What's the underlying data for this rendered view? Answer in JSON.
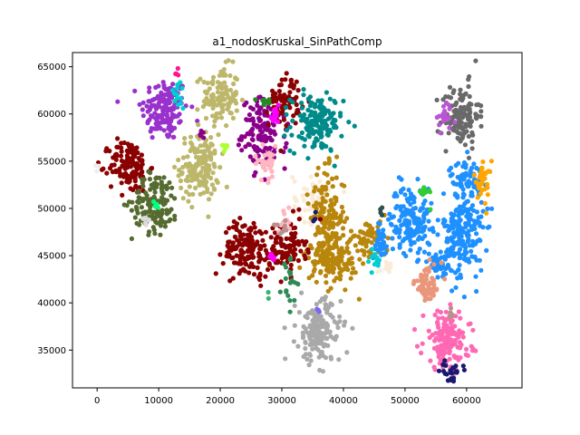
{
  "chart_data": {
    "type": "scatter",
    "title": "a1_nodosKruskal_SinPathComp",
    "xlabel": "",
    "ylabel": "",
    "xlim": [
      -4000,
      69000
    ],
    "ylim": [
      31000,
      66500
    ],
    "xticks": [
      0,
      10000,
      20000,
      30000,
      40000,
      50000,
      60000
    ],
    "yticks": [
      35000,
      40000,
      45000,
      50000,
      55000,
      60000,
      65000
    ],
    "xtick_labels": [
      "0",
      "10000",
      "20000",
      "30000",
      "40000",
      "50000",
      "60000"
    ],
    "ytick_labels": [
      "35000",
      "40000",
      "45000",
      "50000",
      "55000",
      "60000",
      "65000"
    ],
    "grid": false,
    "legend": "none",
    "clusters": [
      {
        "color": "#9932cc",
        "cx": 11000,
        "cy": 60500,
        "sx": 1900,
        "sy": 1700,
        "n": 150
      },
      {
        "color": "#bdb76b",
        "cx": 20000,
        "cy": 61800,
        "sx": 1500,
        "sy": 1600,
        "n": 120
      },
      {
        "color": "#bdb76b",
        "cx": 16600,
        "cy": 54300,
        "sx": 1600,
        "sy": 1800,
        "n": 150
      },
      {
        "color": "#8b008b",
        "cx": 27200,
        "cy": 58000,
        "sx": 1800,
        "sy": 1800,
        "n": 140
      },
      {
        "color": "#8b0000",
        "cx": 30500,
        "cy": 61500,
        "sx": 1300,
        "sy": 1400,
        "n": 70
      },
      {
        "color": "#008b8b",
        "cx": 35700,
        "cy": 59000,
        "sx": 2100,
        "sy": 1500,
        "n": 150
      },
      {
        "color": "#696969",
        "cx": 59000,
        "cy": 59800,
        "sx": 1500,
        "sy": 1700,
        "n": 130
      },
      {
        "color": "#8b0000",
        "cx": 5200,
        "cy": 54500,
        "sx": 1600,
        "sy": 1400,
        "n": 130
      },
      {
        "color": "#556b2f",
        "cx": 9500,
        "cy": 50600,
        "sx": 1900,
        "sy": 1600,
        "n": 140
      },
      {
        "color": "#ffb6c1",
        "cx": 27500,
        "cy": 54800,
        "sx": 1000,
        "sy": 900,
        "n": 30
      },
      {
        "color": "#faebd7",
        "cx": 35000,
        "cy": 51200,
        "sx": 1600,
        "sy": 1300,
        "n": 50
      },
      {
        "color": "#b8860b",
        "cx": 37400,
        "cy": 49000,
        "sx": 1400,
        "sy": 2500,
        "n": 140
      },
      {
        "color": "#b8860b",
        "cx": 38400,
        "cy": 45000,
        "sx": 2000,
        "sy": 1600,
        "n": 150
      },
      {
        "color": "#b8860b",
        "cx": 44700,
        "cy": 46800,
        "sx": 1300,
        "sy": 1000,
        "n": 60
      },
      {
        "color": "#1e90ff",
        "cx": 51000,
        "cy": 48800,
        "sx": 1700,
        "sy": 1800,
        "n": 160
      },
      {
        "color": "#1e90ff",
        "cx": 60000,
        "cy": 53100,
        "sx": 1400,
        "sy": 1000,
        "n": 70
      },
      {
        "color": "#1e90ff",
        "cx": 59500,
        "cy": 47300,
        "sx": 1600,
        "sy": 2300,
        "n": 200
      },
      {
        "color": "#1e90ff",
        "cx": 55300,
        "cy": 43900,
        "sx": 1100,
        "sy": 700,
        "n": 40
      },
      {
        "color": "#1e90ff",
        "cx": 46000,
        "cy": 46300,
        "sx": 700,
        "sy": 900,
        "n": 40
      },
      {
        "color": "#8b0000",
        "cx": 24400,
        "cy": 45700,
        "sx": 1900,
        "sy": 1500,
        "n": 150
      },
      {
        "color": "#8b0000",
        "cx": 30800,
        "cy": 45800,
        "sx": 1500,
        "sy": 1400,
        "n": 100
      },
      {
        "color": "#a9a9a9",
        "cx": 36000,
        "cy": 37000,
        "sx": 1800,
        "sy": 1700,
        "n": 170
      },
      {
        "color": "#ff69b4",
        "cx": 56800,
        "cy": 36000,
        "sx": 1900,
        "sy": 1500,
        "n": 160
      },
      {
        "color": "#e9967a",
        "cx": 53800,
        "cy": 42000,
        "sx": 1100,
        "sy": 1000,
        "n": 60
      },
      {
        "color": "#ffa500",
        "cx": 62600,
        "cy": 52900,
        "sx": 700,
        "sy": 1100,
        "n": 35
      },
      {
        "color": "#191970",
        "cx": 57500,
        "cy": 32800,
        "sx": 900,
        "sy": 500,
        "n": 25
      },
      {
        "color": "#ba55d3",
        "cx": 56400,
        "cy": 59600,
        "sx": 800,
        "sy": 600,
        "n": 20
      },
      {
        "color": "#ff00ff",
        "cx": 28700,
        "cy": 59800,
        "sx": 400,
        "sy": 400,
        "n": 12
      },
      {
        "color": "#00ced1",
        "cx": 13000,
        "cy": 62000,
        "sx": 600,
        "sy": 700,
        "n": 14
      },
      {
        "color": "#2e8b57",
        "cx": 31500,
        "cy": 42400,
        "sx": 700,
        "sy": 1200,
        "n": 20
      },
      {
        "color": "#32cd32",
        "cx": 53300,
        "cy": 51600,
        "sx": 500,
        "sy": 500,
        "n": 12
      },
      {
        "color": "#00ced1",
        "cx": 44900,
        "cy": 44500,
        "sx": 600,
        "sy": 700,
        "n": 12
      },
      {
        "color": "#adff2f",
        "cx": 20700,
        "cy": 56500,
        "sx": 300,
        "sy": 400,
        "n": 6
      },
      {
        "color": "#228b22",
        "cx": 27200,
        "cy": 61200,
        "sx": 500,
        "sy": 200,
        "n": 8
      },
      {
        "color": "#ffb6c1",
        "cx": 30700,
        "cy": 48600,
        "sx": 600,
        "sy": 600,
        "n": 12
      },
      {
        "color": "#bc8f8f",
        "cx": 29900,
        "cy": 47900,
        "sx": 500,
        "sy": 500,
        "n": 8
      },
      {
        "color": "#ff00ff",
        "cx": 28300,
        "cy": 44800,
        "sx": 300,
        "sy": 200,
        "n": 6
      },
      {
        "color": "#bc8f8f",
        "cx": 57500,
        "cy": 38800,
        "sx": 500,
        "sy": 300,
        "n": 6
      },
      {
        "color": "#ff1493",
        "cx": 12800,
        "cy": 64300,
        "sx": 300,
        "sy": 300,
        "n": 4
      },
      {
        "color": "#8b008b",
        "cx": 17000,
        "cy": 57600,
        "sx": 300,
        "sy": 300,
        "n": 5
      },
      {
        "color": "#dcdcdc",
        "cx": 8000,
        "cy": 48600,
        "sx": 400,
        "sy": 200,
        "n": 6
      },
      {
        "color": "#eeeeee",
        "cx": 0,
        "cy": 54500,
        "sx": 200,
        "sy": 300,
        "n": 4
      },
      {
        "color": "#2f4f4f",
        "cx": 46200,
        "cy": 49800,
        "sx": 200,
        "sy": 400,
        "n": 4
      },
      {
        "color": "#00ff7f",
        "cx": 9700,
        "cy": 49800,
        "sx": 300,
        "sy": 500,
        "n": 5
      },
      {
        "color": "#7b68ee",
        "cx": 35900,
        "cy": 39200,
        "sx": 200,
        "sy": 200,
        "n": 3
      },
      {
        "color": "#191970",
        "cx": 35400,
        "cy": 49000,
        "sx": 200,
        "sy": 200,
        "n": 3
      },
      {
        "color": "#3cb371",
        "cx": 27800,
        "cy": 40800,
        "sx": 200,
        "sy": 200,
        "n": 2
      },
      {
        "color": "#faebd7",
        "cx": 47000,
        "cy": 43700,
        "sx": 700,
        "sy": 400,
        "n": 10
      }
    ]
  }
}
